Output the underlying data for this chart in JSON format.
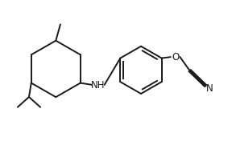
{
  "bg_color": "#ffffff",
  "line_color": "#1a1a1a",
  "text_color": "#1a1a1a",
  "label_NH": "NH",
  "label_O": "O",
  "label_N": "N",
  "line_width": 1.4,
  "font_size": 8.5
}
